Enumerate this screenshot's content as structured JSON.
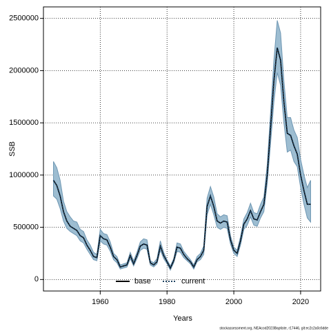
{
  "chart_data": {
    "type": "line",
    "x_label": "Years",
    "y_label": "SSB",
    "footer": "stockassessment.org, NEAcod2023Baptiste, r17446, git:ec2c2a0c6dde",
    "x": [
      1946,
      1947,
      1948,
      1949,
      1950,
      1951,
      1952,
      1953,
      1954,
      1955,
      1956,
      1957,
      1958,
      1959,
      1960,
      1961,
      1962,
      1963,
      1964,
      1965,
      1966,
      1967,
      1968,
      1969,
      1970,
      1971,
      1972,
      1973,
      1974,
      1975,
      1976,
      1977,
      1978,
      1979,
      1980,
      1981,
      1982,
      1983,
      1984,
      1985,
      1986,
      1987,
      1988,
      1989,
      1990,
      1991,
      1992,
      1993,
      1994,
      1995,
      1996,
      1997,
      1998,
      1999,
      2000,
      2001,
      2002,
      2003,
      2004,
      2005,
      2006,
      2007,
      2008,
      2009,
      2010,
      2011,
      2012,
      2013,
      2014,
      2015,
      2016,
      2017,
      2018,
      2019,
      2020,
      2021,
      2022,
      2023
    ],
    "series": [
      {
        "name": "base",
        "color": "#000000",
        "values": [
          950000,
          900000,
          800000,
          650000,
          560000,
          510000,
          490000,
          470000,
          420000,
          400000,
          330000,
          280000,
          220000,
          210000,
          420000,
          390000,
          380000,
          310000,
          220000,
          190000,
          120000,
          130000,
          140000,
          230000,
          150000,
          230000,
          320000,
          340000,
          330000,
          160000,
          140000,
          170000,
          320000,
          230000,
          170000,
          110000,
          180000,
          310000,
          300000,
          240000,
          200000,
          170000,
          120000,
          190000,
          220000,
          280000,
          700000,
          800000,
          700000,
          560000,
          540000,
          560000,
          550000,
          380000,
          280000,
          250000,
          370000,
          530000,
          580000,
          660000,
          580000,
          570000,
          650000,
          720000,
          1000000,
          1450000,
          1900000,
          2220000,
          2100000,
          1700000,
          1400000,
          1380000,
          1280000,
          1200000,
          1000000,
          850000,
          720000,
          720000
        ]
      },
      {
        "name": "current",
        "color": "#1b3f5e",
        "band_color": "#9dbdd1",
        "band_edge": "#6f97b3",
        "values": [
          950000,
          900000,
          800000,
          650000,
          560000,
          510000,
          490000,
          470000,
          420000,
          400000,
          330000,
          280000,
          220000,
          210000,
          420000,
          390000,
          380000,
          310000,
          220000,
          190000,
          120000,
          130000,
          140000,
          230000,
          150000,
          230000,
          320000,
          340000,
          330000,
          160000,
          140000,
          170000,
          320000,
          230000,
          170000,
          110000,
          180000,
          310000,
          300000,
          240000,
          200000,
          170000,
          120000,
          190000,
          220000,
          280000,
          700000,
          800000,
          700000,
          560000,
          540000,
          560000,
          550000,
          380000,
          280000,
          250000,
          370000,
          530000,
          580000,
          660000,
          580000,
          570000,
          650000,
          720000,
          1000000,
          1450000,
          1900000,
          2220000,
          2100000,
          1700000,
          1400000,
          1380000,
          1280000,
          1200000,
          1000000,
          850000,
          720000,
          720000
        ],
        "upper": [
          1130000,
          1070000,
          950000,
          750000,
          650000,
          600000,
          560000,
          550000,
          480000,
          460000,
          380000,
          330000,
          260000,
          240000,
          480000,
          440000,
          430000,
          360000,
          250000,
          220000,
          140000,
          150000,
          160000,
          260000,
          180000,
          260000,
          360000,
          390000,
          380000,
          180000,
          160000,
          200000,
          370000,
          260000,
          190000,
          130000,
          200000,
          350000,
          340000,
          270000,
          230000,
          190000,
          140000,
          220000,
          250000,
          320000,
          780000,
          890000,
          790000,
          630000,
          600000,
          620000,
          610000,
          420000,
          310000,
          280000,
          410000,
          580000,
          640000,
          730000,
          640000,
          630000,
          720000,
          790000,
          1100000,
          1600000,
          2100000,
          2480000,
          2360000,
          1900000,
          1550000,
          1550000,
          1430000,
          1360000,
          1150000,
          1000000,
          880000,
          950000
        ],
        "lower": [
          800000,
          770000,
          680000,
          560000,
          490000,
          460000,
          440000,
          420000,
          370000,
          350000,
          290000,
          240000,
          190000,
          180000,
          370000,
          340000,
          330000,
          270000,
          190000,
          160000,
          100000,
          110000,
          120000,
          200000,
          130000,
          200000,
          280000,
          300000,
          290000,
          140000,
          120000,
          150000,
          280000,
          200000,
          150000,
          90000,
          160000,
          270000,
          260000,
          210000,
          180000,
          150000,
          100000,
          170000,
          190000,
          240000,
          620000,
          720000,
          620000,
          500000,
          480000,
          500000,
          490000,
          340000,
          250000,
          220000,
          330000,
          480000,
          520000,
          600000,
          520000,
          510000,
          590000,
          650000,
          920000,
          1300000,
          1700000,
          1980000,
          1860000,
          1500000,
          1220000,
          1240000,
          1130000,
          1080000,
          880000,
          720000,
          590000,
          550000
        ]
      }
    ],
    "xlim": [
      1943,
      2026
    ],
    "ylim": [
      -110000,
      2610000
    ],
    "xticks": [
      1960,
      1980,
      2000,
      2020
    ],
    "yticks": [
      0,
      500000,
      1000000,
      1500000,
      2000000,
      2500000
    ],
    "grid": true,
    "legend": "bottom"
  }
}
